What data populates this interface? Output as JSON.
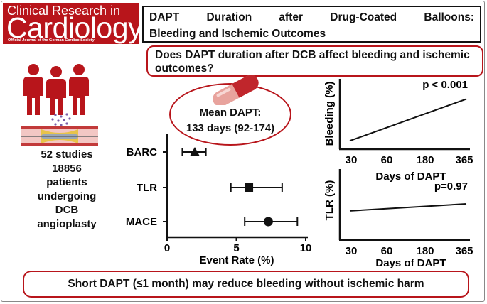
{
  "journal": {
    "line1": "Clinical Research in",
    "line2": "Cardiology",
    "line3": "Official Journal of the German Cardiac Society"
  },
  "title": {
    "line1": "DAPT Duration after Drug-Coated Balloons:",
    "line2": "Bleeding and Ischemic Outcomes"
  },
  "question": "Does DAPT duration after DCB affect bleeding and ischemic outcomes?",
  "mean_dapt": {
    "label": "Mean DAPT:",
    "value": "133 days (92-174)"
  },
  "study": {
    "studies": "52 studies",
    "patients_count": "18856",
    "line3": "patients",
    "line4": "undergoing",
    "line5": "DCB",
    "line6": "angioplasty"
  },
  "conclusion": "Short DAPT (≤1 month) may reduce bleeding without ischemic harm",
  "icons": [
    "people-icon",
    "balloon-artery-icon",
    "pill-capsule-icon"
  ],
  "colors": {
    "brand_red": "#b8151b",
    "ink": "#111111"
  },
  "chart_data": [
    {
      "type": "scatter",
      "subtype": "forest",
      "xlabel": "Event Rate (%)",
      "ylabel": "",
      "xlim": [
        0,
        10
      ],
      "xticks": [
        "0",
        "5",
        "10"
      ],
      "categories": [
        "BARC",
        "TLR",
        "MACE"
      ],
      "series": [
        {
          "point": 2.0,
          "low": 1.1,
          "high": 2.8,
          "marker": "triangle"
        },
        {
          "point": 5.9,
          "low": 4.6,
          "high": 8.3,
          "marker": "square"
        },
        {
          "point": 7.3,
          "low": 5.6,
          "high": 9.4,
          "marker": "circle"
        }
      ],
      "grid": false
    },
    {
      "type": "line",
      "ylabel": "Bleeding (%)",
      "xlabel": "Days of DAPT",
      "xticks": [
        "30",
        "60",
        "180",
        "365"
      ],
      "annotation": "p < 0.001",
      "trend": [
        0.12,
        0.72
      ],
      "grid": false
    },
    {
      "type": "line",
      "ylabel": "TLR (%)",
      "xlabel": "Days of DAPT",
      "xticks": [
        "30",
        "60",
        "180",
        "365"
      ],
      "annotation": "p=0.97",
      "trend": [
        0.42,
        0.52
      ],
      "grid": false
    }
  ]
}
